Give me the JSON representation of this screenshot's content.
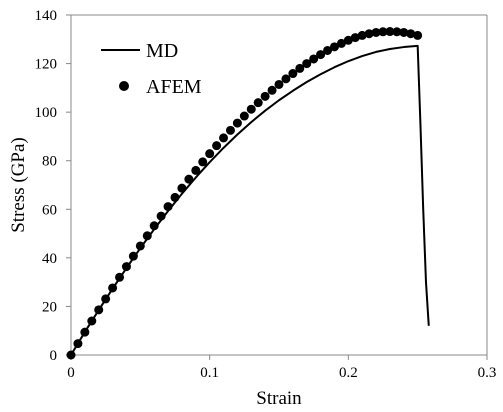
{
  "chart_data": {
    "type": "scatter",
    "xlabel": "Strain",
    "ylabel": "Stress (GPa)",
    "xlim": [
      0,
      0.3
    ],
    "ylim": [
      0,
      140
    ],
    "xticks": [
      "0",
      "0.1",
      "0.2",
      "0.3"
    ],
    "yticks": [
      "0",
      "20",
      "40",
      "60",
      "80",
      "100",
      "120",
      "140"
    ],
    "xtick_values": [
      0,
      0.1,
      0.2,
      0.3
    ],
    "ytick_values": [
      0,
      20,
      40,
      60,
      80,
      100,
      120,
      140
    ],
    "grid": false,
    "legend_position": "top-left",
    "series": [
      {
        "name": "MD",
        "style": "line",
        "color": "#000000",
        "x": [
          0,
          0.01,
          0.02,
          0.03,
          0.04,
          0.05,
          0.06,
          0.07,
          0.08,
          0.09,
          0.1,
          0.11,
          0.12,
          0.13,
          0.14,
          0.15,
          0.16,
          0.17,
          0.18,
          0.19,
          0.2,
          0.21,
          0.22,
          0.23,
          0.24,
          0.25,
          0.252,
          0.254,
          0.256,
          0.258
        ],
        "y": [
          0,
          9.5,
          18.5,
          27.3,
          35.8,
          44.0,
          51.8,
          59.3,
          66.4,
          73.1,
          79.4,
          85.3,
          90.8,
          95.9,
          100.6,
          104.9,
          108.8,
          112.4,
          115.6,
          118.5,
          121.0,
          123.1,
          124.8,
          126.0,
          126.8,
          127.3,
          95,
          60,
          30,
          12
        ]
      },
      {
        "name": "AFEM",
        "style": "markers",
        "color": "#000000",
        "x": [
          0,
          0.005,
          0.01,
          0.015,
          0.02,
          0.025,
          0.03,
          0.035,
          0.04,
          0.045,
          0.05,
          0.055,
          0.06,
          0.065,
          0.07,
          0.075,
          0.08,
          0.085,
          0.09,
          0.095,
          0.1,
          0.105,
          0.11,
          0.115,
          0.12,
          0.125,
          0.13,
          0.135,
          0.14,
          0.145,
          0.15,
          0.155,
          0.16,
          0.165,
          0.17,
          0.175,
          0.18,
          0.185,
          0.19,
          0.195,
          0.2,
          0.205,
          0.21,
          0.215,
          0.22,
          0.225,
          0.23,
          0.235,
          0.24,
          0.245,
          0.25
        ],
        "y": [
          0,
          4.7,
          9.4,
          14.0,
          18.6,
          23.1,
          27.6,
          32.0,
          36.4,
          40.7,
          44.9,
          49.1,
          53.2,
          57.2,
          61.1,
          64.9,
          68.7,
          72.4,
          76.0,
          79.5,
          82.9,
          86.2,
          89.4,
          92.5,
          95.5,
          98.4,
          101.2,
          103.9,
          106.5,
          109.0,
          111.4,
          113.7,
          115.9,
          118.0,
          120.0,
          121.9,
          123.7,
          125.4,
          126.9,
          128.3,
          129.6,
          130.7,
          131.6,
          132.3,
          132.8,
          133.1,
          133.2,
          133.1,
          132.8,
          132.3,
          131.6
        ]
      }
    ]
  }
}
